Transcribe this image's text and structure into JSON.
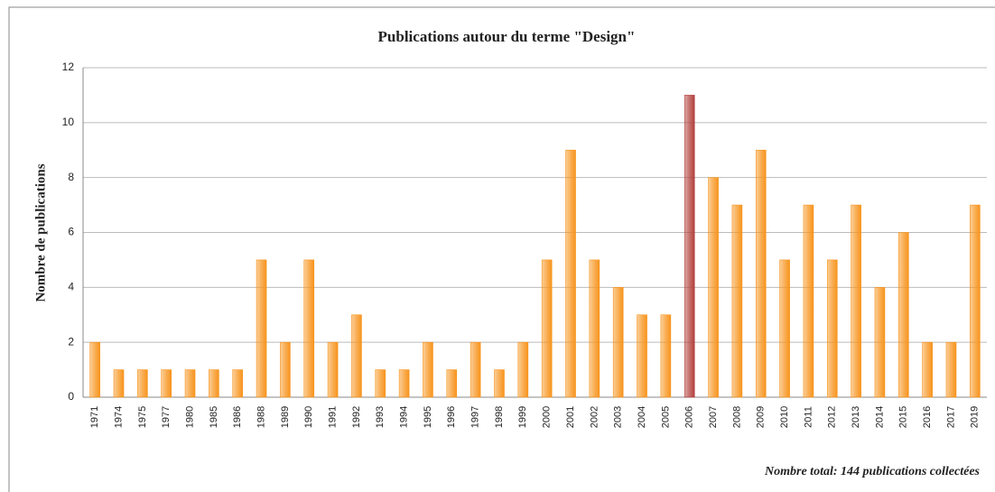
{
  "chart_data": {
    "type": "bar",
    "title": "Publications autour du terme \"Design\"",
    "y_label": "Nombre de publications",
    "note": "Nombre total: 144  publications collectées",
    "categories": [
      "1971",
      "1974",
      "1975",
      "1977",
      "1980",
      "1985",
      "1986",
      "1988",
      "1989",
      "1990",
      "1991",
      "1992",
      "1993",
      "1994",
      "1995",
      "1996",
      "1997",
      "1998",
      "1999",
      "2000",
      "2001",
      "2002",
      "2003",
      "2004",
      "2005",
      "2006",
      "2007",
      "2008",
      "2009",
      "2010",
      "2011",
      "2012",
      "2013",
      "2014",
      "2015",
      "2016",
      "2017",
      "2019"
    ],
    "values": [
      2,
      1,
      1,
      1,
      1,
      1,
      1,
      5,
      2,
      5,
      2,
      3,
      1,
      1,
      2,
      1,
      2,
      1,
      2,
      5,
      9,
      5,
      4,
      3,
      3,
      11,
      8,
      7,
      9,
      5,
      7,
      5,
      7,
      4,
      6,
      2,
      2,
      7
    ],
    "colors": [
      "#f7941d",
      "#f7941d",
      "#f7941d",
      "#f7941d",
      "#f7941d",
      "#f7941d",
      "#f7941d",
      "#f7941d",
      "#f7941d",
      "#f7941d",
      "#f7941d",
      "#f7941d",
      "#f7941d",
      "#f7941d",
      "#f7941d",
      "#f7941d",
      "#f7941d",
      "#f7941d",
      "#f7941d",
      "#f7941d",
      "#f7941d",
      "#f7941d",
      "#f7941d",
      "#f7941d",
      "#f7941d",
      "#b2403c",
      "#f7941d",
      "#f7941d",
      "#f7941d",
      "#f7941d",
      "#f7941d",
      "#f7941d",
      "#f7941d",
      "#f7941d",
      "#f7941d",
      "#f7941d",
      "#f7941d",
      "#f7941d"
    ],
    "ylim": [
      0,
      12
    ],
    "yticks": [
      0,
      2,
      4,
      6,
      8,
      10,
      12
    ],
    "grid": true
  }
}
